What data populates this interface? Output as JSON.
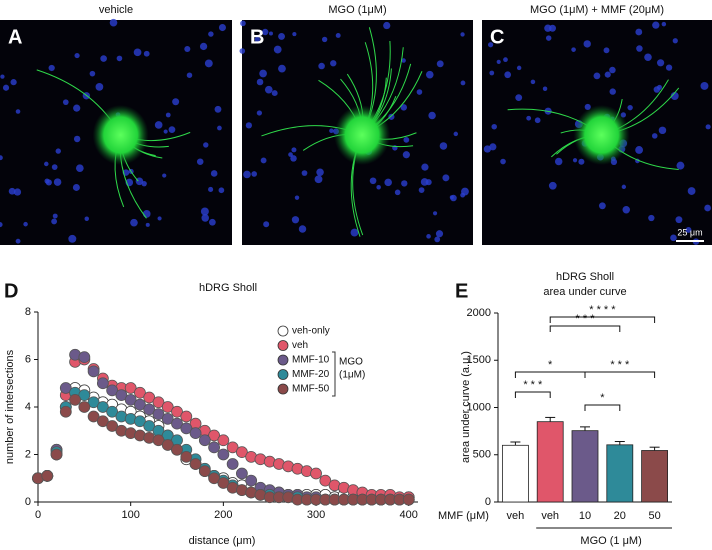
{
  "images": [
    {
      "title": "vehicle",
      "letter": "A"
    },
    {
      "title": "MGO (1μM)",
      "letter": "B"
    },
    {
      "title": "MGO (1μM) + MMF (20μM)",
      "letter": "C",
      "scale_bar": "25 μm"
    }
  ],
  "chart_data": [
    {
      "type": "scatter",
      "letter": "D",
      "title": "hDRG Sholl",
      "xlabel": "distance (μm)",
      "ylabel": "number of intersections",
      "x": [
        0,
        10,
        20,
        30,
        40,
        50,
        60,
        70,
        80,
        90,
        100,
        110,
        120,
        130,
        140,
        150,
        160,
        170,
        180,
        190,
        200,
        210,
        220,
        230,
        240,
        250,
        260,
        270,
        280,
        290,
        300,
        310,
        320,
        330,
        340,
        350,
        360,
        370,
        380,
        390,
        400
      ],
      "xlim": [
        0,
        410
      ],
      "xticks": [
        0,
        100,
        200,
        300,
        400
      ],
      "ylim": [
        0,
        8
      ],
      "yticks": [
        0,
        2,
        4,
        6,
        8
      ],
      "legend_note": [
        "MGO",
        "(1μM)"
      ],
      "series": [
        {
          "name": "veh-only",
          "color": "#ffffff",
          "values": [
            1,
            1.1,
            2,
            4,
            4.8,
            4.7,
            4.4,
            4.2,
            4.1,
            3.9,
            3.8,
            3.6,
            3.4,
            3.2,
            2.8,
            2.2,
            1.8,
            1.6,
            1.3,
            1.1,
            1.0,
            0.8,
            0.7,
            0.6,
            0.5,
            0.4,
            0.4,
            0.3,
            0.3,
            0.3,
            0.3,
            0.3,
            0.2,
            0.3,
            0.2,
            0.2,
            0.2,
            0.1,
            0.2,
            0.1,
            0.2
          ]
        },
        {
          "name": "veh",
          "color": "#e0566a",
          "values": [
            1,
            1.1,
            2.2,
            4.5,
            5.9,
            6.0,
            5.6,
            5.2,
            4.9,
            4.8,
            4.8,
            4.6,
            4.4,
            4.2,
            4.0,
            3.8,
            3.6,
            3.3,
            3.0,
            2.8,
            2.6,
            2.3,
            2.1,
            1.9,
            1.8,
            1.7,
            1.6,
            1.5,
            1.4,
            1.3,
            1.2,
            0.9,
            0.7,
            0.6,
            0.5,
            0.4,
            0.3,
            0.3,
            0.3,
            0.2,
            0.2
          ]
        },
        {
          "name": "MMF-10",
          "color": "#6b5a8a",
          "values": [
            1,
            1.1,
            2.2,
            4.8,
            6.2,
            6.1,
            5.5,
            5.0,
            4.7,
            4.5,
            4.3,
            4.1,
            3.9,
            3.7,
            3.5,
            3.3,
            3.1,
            2.9,
            2.6,
            2.3,
            2.0,
            1.6,
            1.2,
            0.9,
            0.6,
            0.5,
            0.4,
            0.3,
            0.3,
            0.2,
            0.2,
            0.1,
            0.1,
            0.1,
            0.1,
            0.1,
            0.1,
            0.1,
            0.1,
            0.1,
            0.1
          ]
        },
        {
          "name": "MMF-20",
          "color": "#2e8a99",
          "values": [
            1,
            1.1,
            2.1,
            4.0,
            4.6,
            4.5,
            4.2,
            4.0,
            3.8,
            3.6,
            3.5,
            3.4,
            3.2,
            3.0,
            2.8,
            2.6,
            2.2,
            1.8,
            1.4,
            1.1,
            0.9,
            0.7,
            0.5,
            0.4,
            0.3,
            0.3,
            0.2,
            0.2,
            0.2,
            0.1,
            0.1,
            0.1,
            0.1,
            0.1,
            0.1,
            0.1,
            0.1,
            0.1,
            0.1,
            0.1,
            0.1
          ]
        },
        {
          "name": "MMF-50",
          "color": "#8b4a4a",
          "values": [
            1,
            1.1,
            2.0,
            3.8,
            4.3,
            4.0,
            3.6,
            3.4,
            3.2,
            3.0,
            2.9,
            2.8,
            2.7,
            2.6,
            2.4,
            2.2,
            1.9,
            1.6,
            1.3,
            1.0,
            0.8,
            0.6,
            0.5,
            0.4,
            0.3,
            0.2,
            0.2,
            0.2,
            0.1,
            0.1,
            0.1,
            0.1,
            0.1,
            0.1,
            0.1,
            0.1,
            0.1,
            0.1,
            0.1,
            0.1,
            0.1
          ]
        }
      ]
    },
    {
      "type": "bar",
      "letter": "E",
      "title": "hDRG Sholl",
      "subtitle": "area under curve",
      "ylabel": "area under curve (a.u.)",
      "category_axis_label": "MMF (μM)",
      "group_label": "MGO (1 μM)",
      "categories": [
        "veh",
        "veh",
        "10",
        "20",
        "50"
      ],
      "values": [
        600,
        850,
        755,
        605,
        545
      ],
      "errors": [
        35,
        45,
        40,
        35,
        35
      ],
      "colors": [
        "#ffffff",
        "#e0566a",
        "#6b5a8a",
        "#2e8a99",
        "#8b4a4a"
      ],
      "ylim": [
        0,
        2000
      ],
      "yticks": [
        0,
        500,
        1000,
        1500,
        2000
      ],
      "significance": [
        {
          "from": 0,
          "to": 1,
          "label": "* * *"
        },
        {
          "from": 2,
          "to": 3,
          "label": "*"
        },
        {
          "from": 0,
          "to": 2,
          "label": "*"
        },
        {
          "from": 2,
          "to": 4,
          "label": "* * *"
        },
        {
          "from": 1,
          "to": 3,
          "label": "* * *"
        },
        {
          "from": 1,
          "to": 4,
          "label": "* * * *"
        }
      ]
    }
  ]
}
